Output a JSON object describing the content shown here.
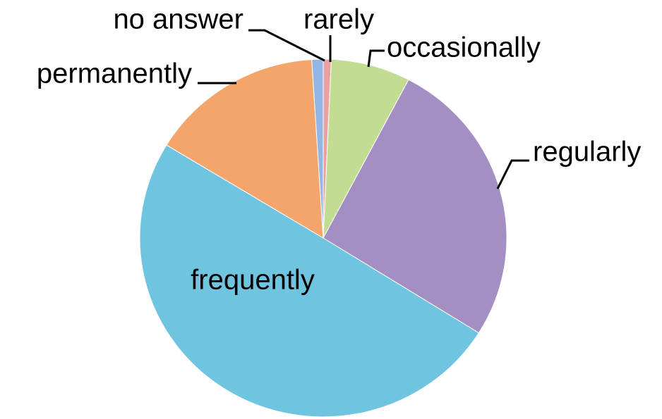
{
  "chart_data": {
    "type": "pie",
    "categories": [
      "rarely",
      "occasionally",
      "regularly",
      "frequently",
      "permanently",
      "no answer"
    ],
    "values": [
      0.7,
      7.0,
      26.2,
      49.8,
      15.3,
      1.0
    ],
    "colors": [
      "#e8a0a0",
      "#c2dd92",
      "#a48fc2",
      "#6fc5e0",
      "#f3a56c",
      "#94b6e2"
    ],
    "start_angle": 90,
    "direction": "clockwise"
  }
}
